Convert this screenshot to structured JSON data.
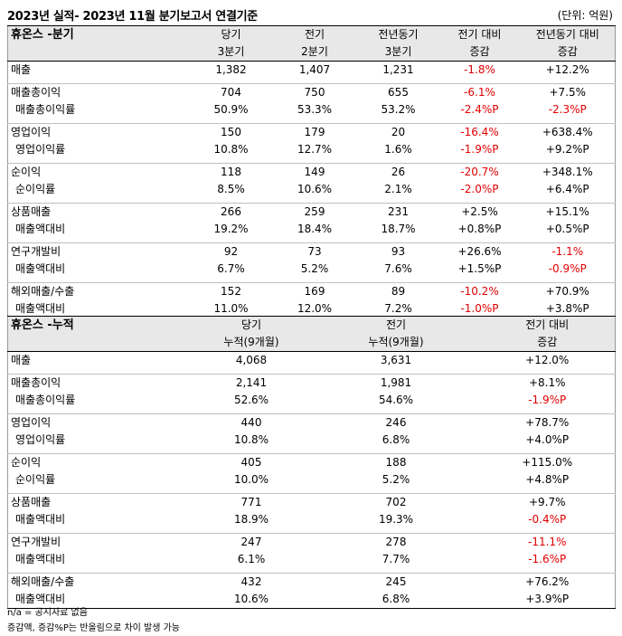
{
  "header": {
    "title": "2023년 실적- 2023년 11월 분기보고서 연결기준",
    "unit": "(단위: 억원)"
  },
  "quarterly": {
    "name": "휴온스 -분기",
    "columns": [
      {
        "l1": "당기",
        "l2": "3분기"
      },
      {
        "l1": "전기",
        "l2": "2분기"
      },
      {
        "l1": "전년동기",
        "l2": "3분기"
      },
      {
        "l1": "전기 대비",
        "l2": "증감"
      },
      {
        "l1": "전년동기 대비",
        "l2": "증감"
      }
    ],
    "groups": [
      {
        "rows": [
          {
            "label": "매출",
            "sub": false,
            "values": [
              "1,382",
              "1,407",
              "1,231",
              "-1.8%",
              "+12.2%"
            ]
          }
        ]
      },
      {
        "rows": [
          {
            "label": "매출총이익",
            "sub": false,
            "values": [
              "704",
              "750",
              "655",
              "-6.1%",
              "+7.5%"
            ]
          },
          {
            "label": "매출총이익률",
            "sub": true,
            "values": [
              "50.9%",
              "53.3%",
              "53.2%",
              "-2.4%P",
              "-2.3%P"
            ]
          }
        ]
      },
      {
        "rows": [
          {
            "label": "영업이익",
            "sub": false,
            "values": [
              "150",
              "179",
              "20",
              "-16.4%",
              "+638.4%"
            ]
          },
          {
            "label": "영업이익률",
            "sub": true,
            "values": [
              "10.8%",
              "12.7%",
              "1.6%",
              "-1.9%P",
              "+9.2%P"
            ]
          }
        ]
      },
      {
        "rows": [
          {
            "label": "순이익",
            "sub": false,
            "values": [
              "118",
              "149",
              "26",
              "-20.7%",
              "+348.1%"
            ]
          },
          {
            "label": "순이익률",
            "sub": true,
            "values": [
              "8.5%",
              "10.6%",
              "2.1%",
              "-2.0%P",
              "+6.4%P"
            ]
          }
        ]
      },
      {
        "rows": [
          {
            "label": "상품매출",
            "sub": false,
            "values": [
              "266",
              "259",
              "231",
              "+2.5%",
              "+15.1%"
            ]
          },
          {
            "label": "매출액대비",
            "sub": true,
            "values": [
              "19.2%",
              "18.4%",
              "18.7%",
              "+0.8%P",
              "+0.5%P"
            ]
          }
        ]
      },
      {
        "rows": [
          {
            "label": "연구개발비",
            "sub": false,
            "values": [
              "92",
              "73",
              "93",
              "+26.6%",
              "-1.1%"
            ]
          },
          {
            "label": "매출액대비",
            "sub": true,
            "values": [
              "6.7%",
              "5.2%",
              "7.6%",
              "+1.5%P",
              "-0.9%P"
            ]
          }
        ]
      },
      {
        "rows": [
          {
            "label": "해외매출/수출",
            "sub": false,
            "values": [
              "152",
              "169",
              "89",
              "-10.2%",
              "+70.9%"
            ]
          },
          {
            "label": "매출액대비",
            "sub": true,
            "values": [
              "11.0%",
              "12.0%",
              "7.2%",
              "-1.0%P",
              "+3.8%P"
            ]
          }
        ]
      }
    ]
  },
  "cumulative": {
    "name": "휴온스 -누적",
    "columns": [
      {
        "l1": "당기",
        "l2": "누적(9개월)"
      },
      {
        "l1": "전기",
        "l2": "누적(9개월)"
      },
      {
        "l1": "전기 대비",
        "l2": "증감"
      }
    ],
    "groups": [
      {
        "rows": [
          {
            "label": "매출",
            "sub": false,
            "values": [
              "4,068",
              "3,631",
              "+12.0%"
            ]
          }
        ]
      },
      {
        "rows": [
          {
            "label": "매출총이익",
            "sub": false,
            "values": [
              "2,141",
              "1,981",
              "+8.1%"
            ]
          },
          {
            "label": "매출총이익률",
            "sub": true,
            "values": [
              "52.6%",
              "54.6%",
              "-1.9%P"
            ]
          }
        ]
      },
      {
        "rows": [
          {
            "label": "영업이익",
            "sub": false,
            "values": [
              "440",
              "246",
              "+78.7%"
            ]
          },
          {
            "label": "영업이익률",
            "sub": true,
            "values": [
              "10.8%",
              "6.8%",
              "+4.0%P"
            ]
          }
        ]
      },
      {
        "rows": [
          {
            "label": "순이익",
            "sub": false,
            "values": [
              "405",
              "188",
              "+115.0%"
            ]
          },
          {
            "label": "순이익률",
            "sub": true,
            "values": [
              "10.0%",
              "5.2%",
              "+4.8%P"
            ]
          }
        ]
      },
      {
        "rows": [
          {
            "label": "상품매출",
            "sub": false,
            "values": [
              "771",
              "702",
              "+9.7%"
            ]
          },
          {
            "label": "매출액대비",
            "sub": true,
            "values": [
              "18.9%",
              "19.3%",
              "-0.4%P"
            ]
          }
        ]
      },
      {
        "rows": [
          {
            "label": "연구개발비",
            "sub": false,
            "values": [
              "247",
              "278",
              "-11.1%"
            ]
          },
          {
            "label": "매출액대비",
            "sub": true,
            "values": [
              "6.1%",
              "7.7%",
              "-1.6%P"
            ]
          }
        ]
      },
      {
        "rows": [
          {
            "label": "해외매출/수출",
            "sub": false,
            "values": [
              "432",
              "245",
              "+76.2%"
            ]
          },
          {
            "label": "매출액대비",
            "sub": true,
            "values": [
              "10.6%",
              "6.8%",
              "+3.9%P"
            ]
          }
        ]
      }
    ]
  },
  "notes": [
    "n/a = 공시자료 없음",
    "증감액, 증감%P는 반올림으로 차이 발생 가능"
  ],
  "colors": {
    "negative": "#e00000",
    "header_bg": "#e8e8e8"
  }
}
